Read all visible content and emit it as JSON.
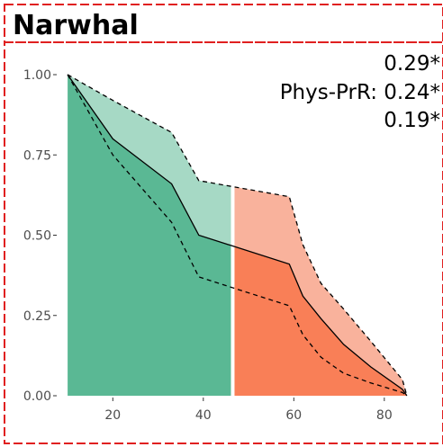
{
  "panel": {
    "title": "Narwhal"
  },
  "annotation": {
    "line1": "0.29*",
    "line2": "Phys-PrR: 0.24*",
    "line3": "0.19*"
  },
  "colors": {
    "green_fill": "#5ab894",
    "green_band": "#a6d9c5",
    "orange_fill": "#f97f57",
    "orange_band": "#f9b29c",
    "frame": "#e02020",
    "divider": "#ffffff"
  },
  "chart_data": {
    "type": "area",
    "title": "",
    "xlabel": "",
    "ylabel": "",
    "xlim": [
      8,
      87
    ],
    "ylim": [
      0,
      1
    ],
    "x_ticks": [
      20,
      40,
      60,
      80
    ],
    "y_ticks": [
      "0.00",
      "0.25",
      "0.50",
      "0.75",
      "1.00"
    ],
    "y_tick_values": [
      0,
      0.25,
      0.5,
      0.75,
      1.0
    ],
    "split_x": 46.5,
    "x": [
      10,
      20,
      33,
      39,
      59,
      62,
      66,
      71,
      77,
      84,
      85
    ],
    "upper": [
      1.0,
      0.92,
      0.82,
      0.67,
      0.62,
      0.47,
      0.35,
      0.27,
      0.17,
      0.05,
      0.0
    ],
    "mid": [
      1.0,
      0.8,
      0.66,
      0.5,
      0.41,
      0.31,
      0.24,
      0.16,
      0.09,
      0.02,
      0.0
    ],
    "lower": [
      1.0,
      0.75,
      0.54,
      0.37,
      0.28,
      0.19,
      0.12,
      0.07,
      0.04,
      0.01,
      0.0
    ],
    "grid": false
  }
}
